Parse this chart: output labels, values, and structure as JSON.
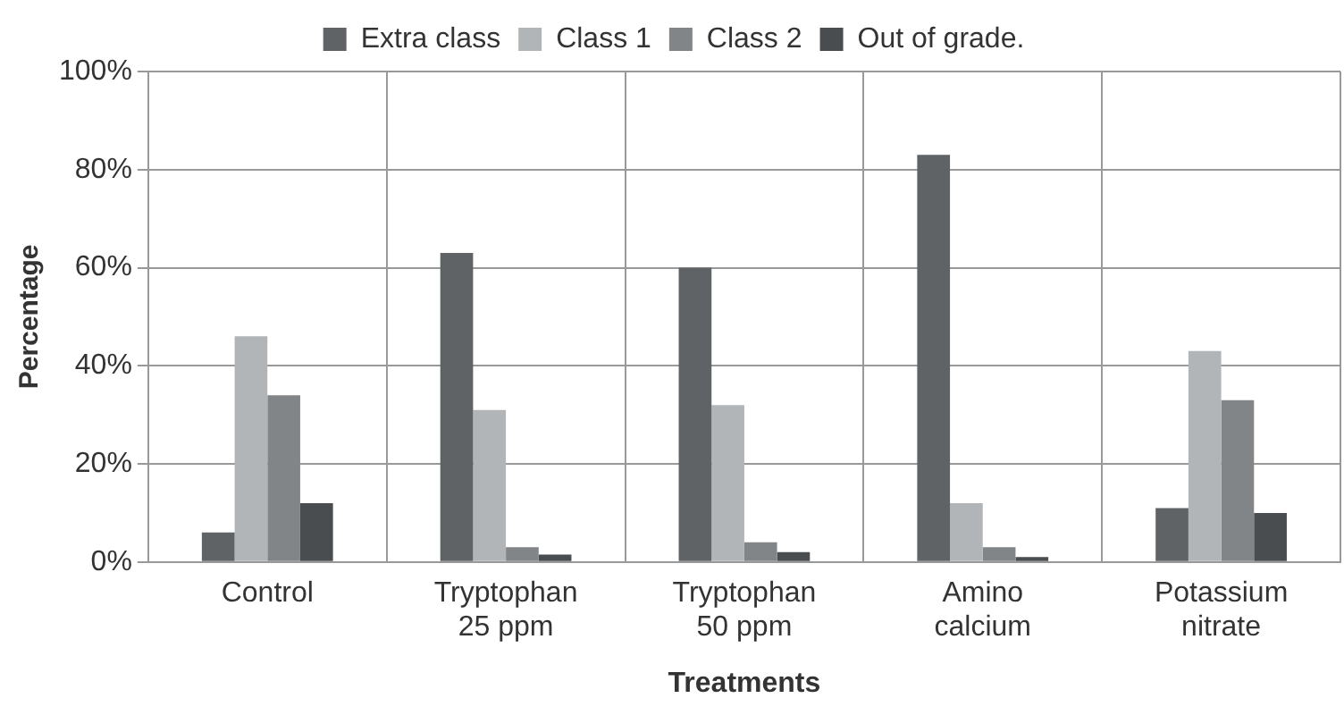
{
  "chart_data": {
    "type": "bar",
    "xlabel": "Treatments",
    "ylabel": "Percentage",
    "categories": [
      "Control",
      "Tryptophan\n25 ppm",
      "Tryptophan\n50 ppm",
      "Amino\ncalcium",
      "Potassium\nnitrate"
    ],
    "series": [
      {
        "name": "Extra class",
        "color": "#5f6366",
        "values": [
          6,
          63,
          60,
          83,
          11
        ]
      },
      {
        "name": "Class 1",
        "color": "#b2b5b7",
        "values": [
          46,
          31,
          32,
          12,
          43
        ]
      },
      {
        "name": "Class 2",
        "color": "#828587",
        "values": [
          34,
          3,
          4,
          3,
          33
        ]
      },
      {
        "name": "Out of grade.",
        "color": "#4a4d50",
        "values": [
          12,
          1.5,
          2,
          1,
          10
        ]
      }
    ],
    "ylim": [
      0,
      100
    ],
    "yticks": [
      {
        "value": 0,
        "label": "0%"
      },
      {
        "value": 20,
        "label": "20%"
      },
      {
        "value": 40,
        "label": "40%"
      },
      {
        "value": 60,
        "label": "60%"
      },
      {
        "value": 80,
        "label": "80%"
      },
      {
        "value": 100,
        "label": "100%"
      }
    ],
    "grid": true,
    "legend": "top"
  }
}
